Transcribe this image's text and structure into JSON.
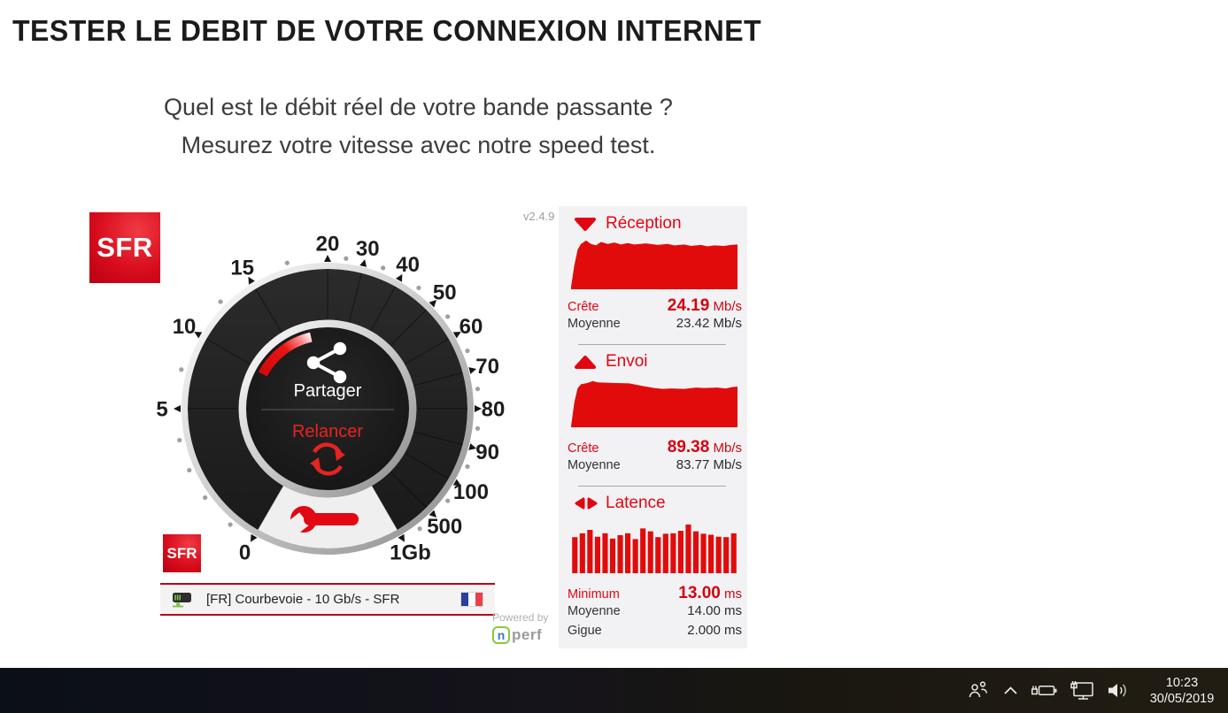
{
  "page": {
    "title": "TESTER LE DEBIT DE VOTRE CONNEXION INTERNET",
    "subtitle_line1": "Quel est le débit réel de votre bande passante ?",
    "subtitle_line2": "Mesurez votre vitesse avec notre speed test."
  },
  "colors": {
    "brand_red": "#e20613",
    "graph_red": "#e20b0b",
    "panel_bg": "#f2f2f4",
    "dial_dark": "#212121",
    "wedge_light": "#efefef"
  },
  "speedtest": {
    "version": "v2.4.9",
    "brand": "SFR",
    "gauge": {
      "share_label": "Partager",
      "restart_label": "Relancer",
      "unit_top": "20",
      "scale": [
        {
          "label": "0",
          "angle": -150
        },
        {
          "label": "5",
          "angle": -90
        },
        {
          "label": "10",
          "angle": -60
        },
        {
          "label": "15",
          "angle": -31
        },
        {
          "label": "20",
          "angle": 0
        },
        {
          "label": "30",
          "angle": 14
        },
        {
          "label": "40",
          "angle": 29
        },
        {
          "label": "50",
          "angle": 45
        },
        {
          "label": "60",
          "angle": 60
        },
        {
          "label": "70",
          "angle": 75
        },
        {
          "label": "80",
          "angle": 90
        },
        {
          "label": "90",
          "angle": 105
        },
        {
          "label": "100",
          "angle": 120
        },
        {
          "label": "500",
          "angle": 135
        },
        {
          "label": "1Gb",
          "angle": 150
        }
      ],
      "dot_angles": [
        -140,
        -126,
        -114,
        -102,
        -75,
        -45,
        -15.5,
        7,
        21.5,
        37,
        52.5,
        67.5,
        82.5,
        97.5,
        112.5,
        127.5,
        142.5
      ],
      "progress_arc": {
        "start_angle": -62,
        "end_angle": -13
      }
    },
    "server_bar": {
      "label": "[FR] Courbevoie - 10 Gb/s - SFR",
      "flag": "france-flag"
    },
    "results": {
      "download": {
        "title": "Réception",
        "rows": [
          {
            "label": "Crête",
            "value": "24.19",
            "unit": "Mb/s"
          },
          {
            "label": "Moyenne",
            "value": "23.42 Mb/s"
          }
        ]
      },
      "upload": {
        "title": "Envoi",
        "rows": [
          {
            "label": "Crête",
            "value": "89.38",
            "unit": "Mb/s"
          },
          {
            "label": "Moyenne",
            "value": "83.77 Mb/s"
          }
        ]
      },
      "latency": {
        "title": "Latence",
        "rows": [
          {
            "label": "Minimum",
            "value": "13.00",
            "unit": "ms"
          },
          {
            "label": "Moyenne",
            "value": "14.00 ms"
          },
          {
            "label": "Gigue",
            "value": "2.000 ms"
          }
        ]
      }
    },
    "powered_by": {
      "text": "Powered by",
      "logo_n": "n",
      "logo_rest": "perf"
    }
  },
  "chart_data": [
    {
      "type": "area",
      "title": "Réception",
      "unit": "Mb/s",
      "peak": 24.19,
      "average": 23.42,
      "points": [
        [
          0,
          0.05
        ],
        [
          2,
          0.5
        ],
        [
          4,
          0.82
        ],
        [
          6,
          0.93
        ],
        [
          9,
          1.0
        ],
        [
          12,
          0.93
        ],
        [
          15,
          0.9
        ],
        [
          18,
          0.97
        ],
        [
          22,
          0.93
        ],
        [
          26,
          0.96
        ],
        [
          30,
          0.92
        ],
        [
          34,
          0.95
        ],
        [
          38,
          0.92
        ],
        [
          45,
          0.94
        ],
        [
          52,
          0.91
        ],
        [
          58,
          0.93
        ],
        [
          62,
          0.9
        ],
        [
          68,
          0.92
        ],
        [
          72,
          0.89
        ],
        [
          78,
          0.91
        ],
        [
          82,
          0.88
        ],
        [
          86,
          0.9
        ],
        [
          92,
          0.89
        ],
        [
          96,
          0.91
        ],
        [
          100,
          0.92
        ]
      ]
    },
    {
      "type": "area",
      "title": "Envoi",
      "unit": "Mb/s",
      "peak": 89.38,
      "average": 83.77,
      "points": [
        [
          0,
          0.02
        ],
        [
          2,
          0.55
        ],
        [
          4,
          0.85
        ],
        [
          6,
          0.93
        ],
        [
          10,
          0.96
        ],
        [
          13,
          1.0
        ],
        [
          16,
          0.97
        ],
        [
          25,
          0.96
        ],
        [
          35,
          0.95
        ],
        [
          42,
          0.9
        ],
        [
          50,
          0.85
        ],
        [
          55,
          0.83
        ],
        [
          60,
          0.84
        ],
        [
          68,
          0.83
        ],
        [
          75,
          0.86
        ],
        [
          80,
          0.85
        ],
        [
          88,
          0.86
        ],
        [
          93,
          0.84
        ],
        [
          97,
          0.87
        ],
        [
          100,
          0.88
        ]
      ]
    },
    {
      "type": "bar",
      "title": "Latence",
      "unit": "ms",
      "minimum": 13.0,
      "average": 14.0,
      "jitter": 2.0,
      "values": [
        0.74,
        0.82,
        0.89,
        0.75,
        0.82,
        0.71,
        0.78,
        0.82,
        0.7,
        0.92,
        0.86,
        0.74,
        0.81,
        0.82,
        0.87,
        1.0,
        0.86,
        0.81,
        0.79,
        0.75,
        0.74,
        0.82
      ]
    }
  ],
  "taskbar": {
    "time": "10:23",
    "date": "30/05/2019",
    "icons": [
      "people-icon",
      "chevron-up-icon",
      "battery-icon",
      "network-monitor-icon",
      "speaker-icon"
    ]
  }
}
